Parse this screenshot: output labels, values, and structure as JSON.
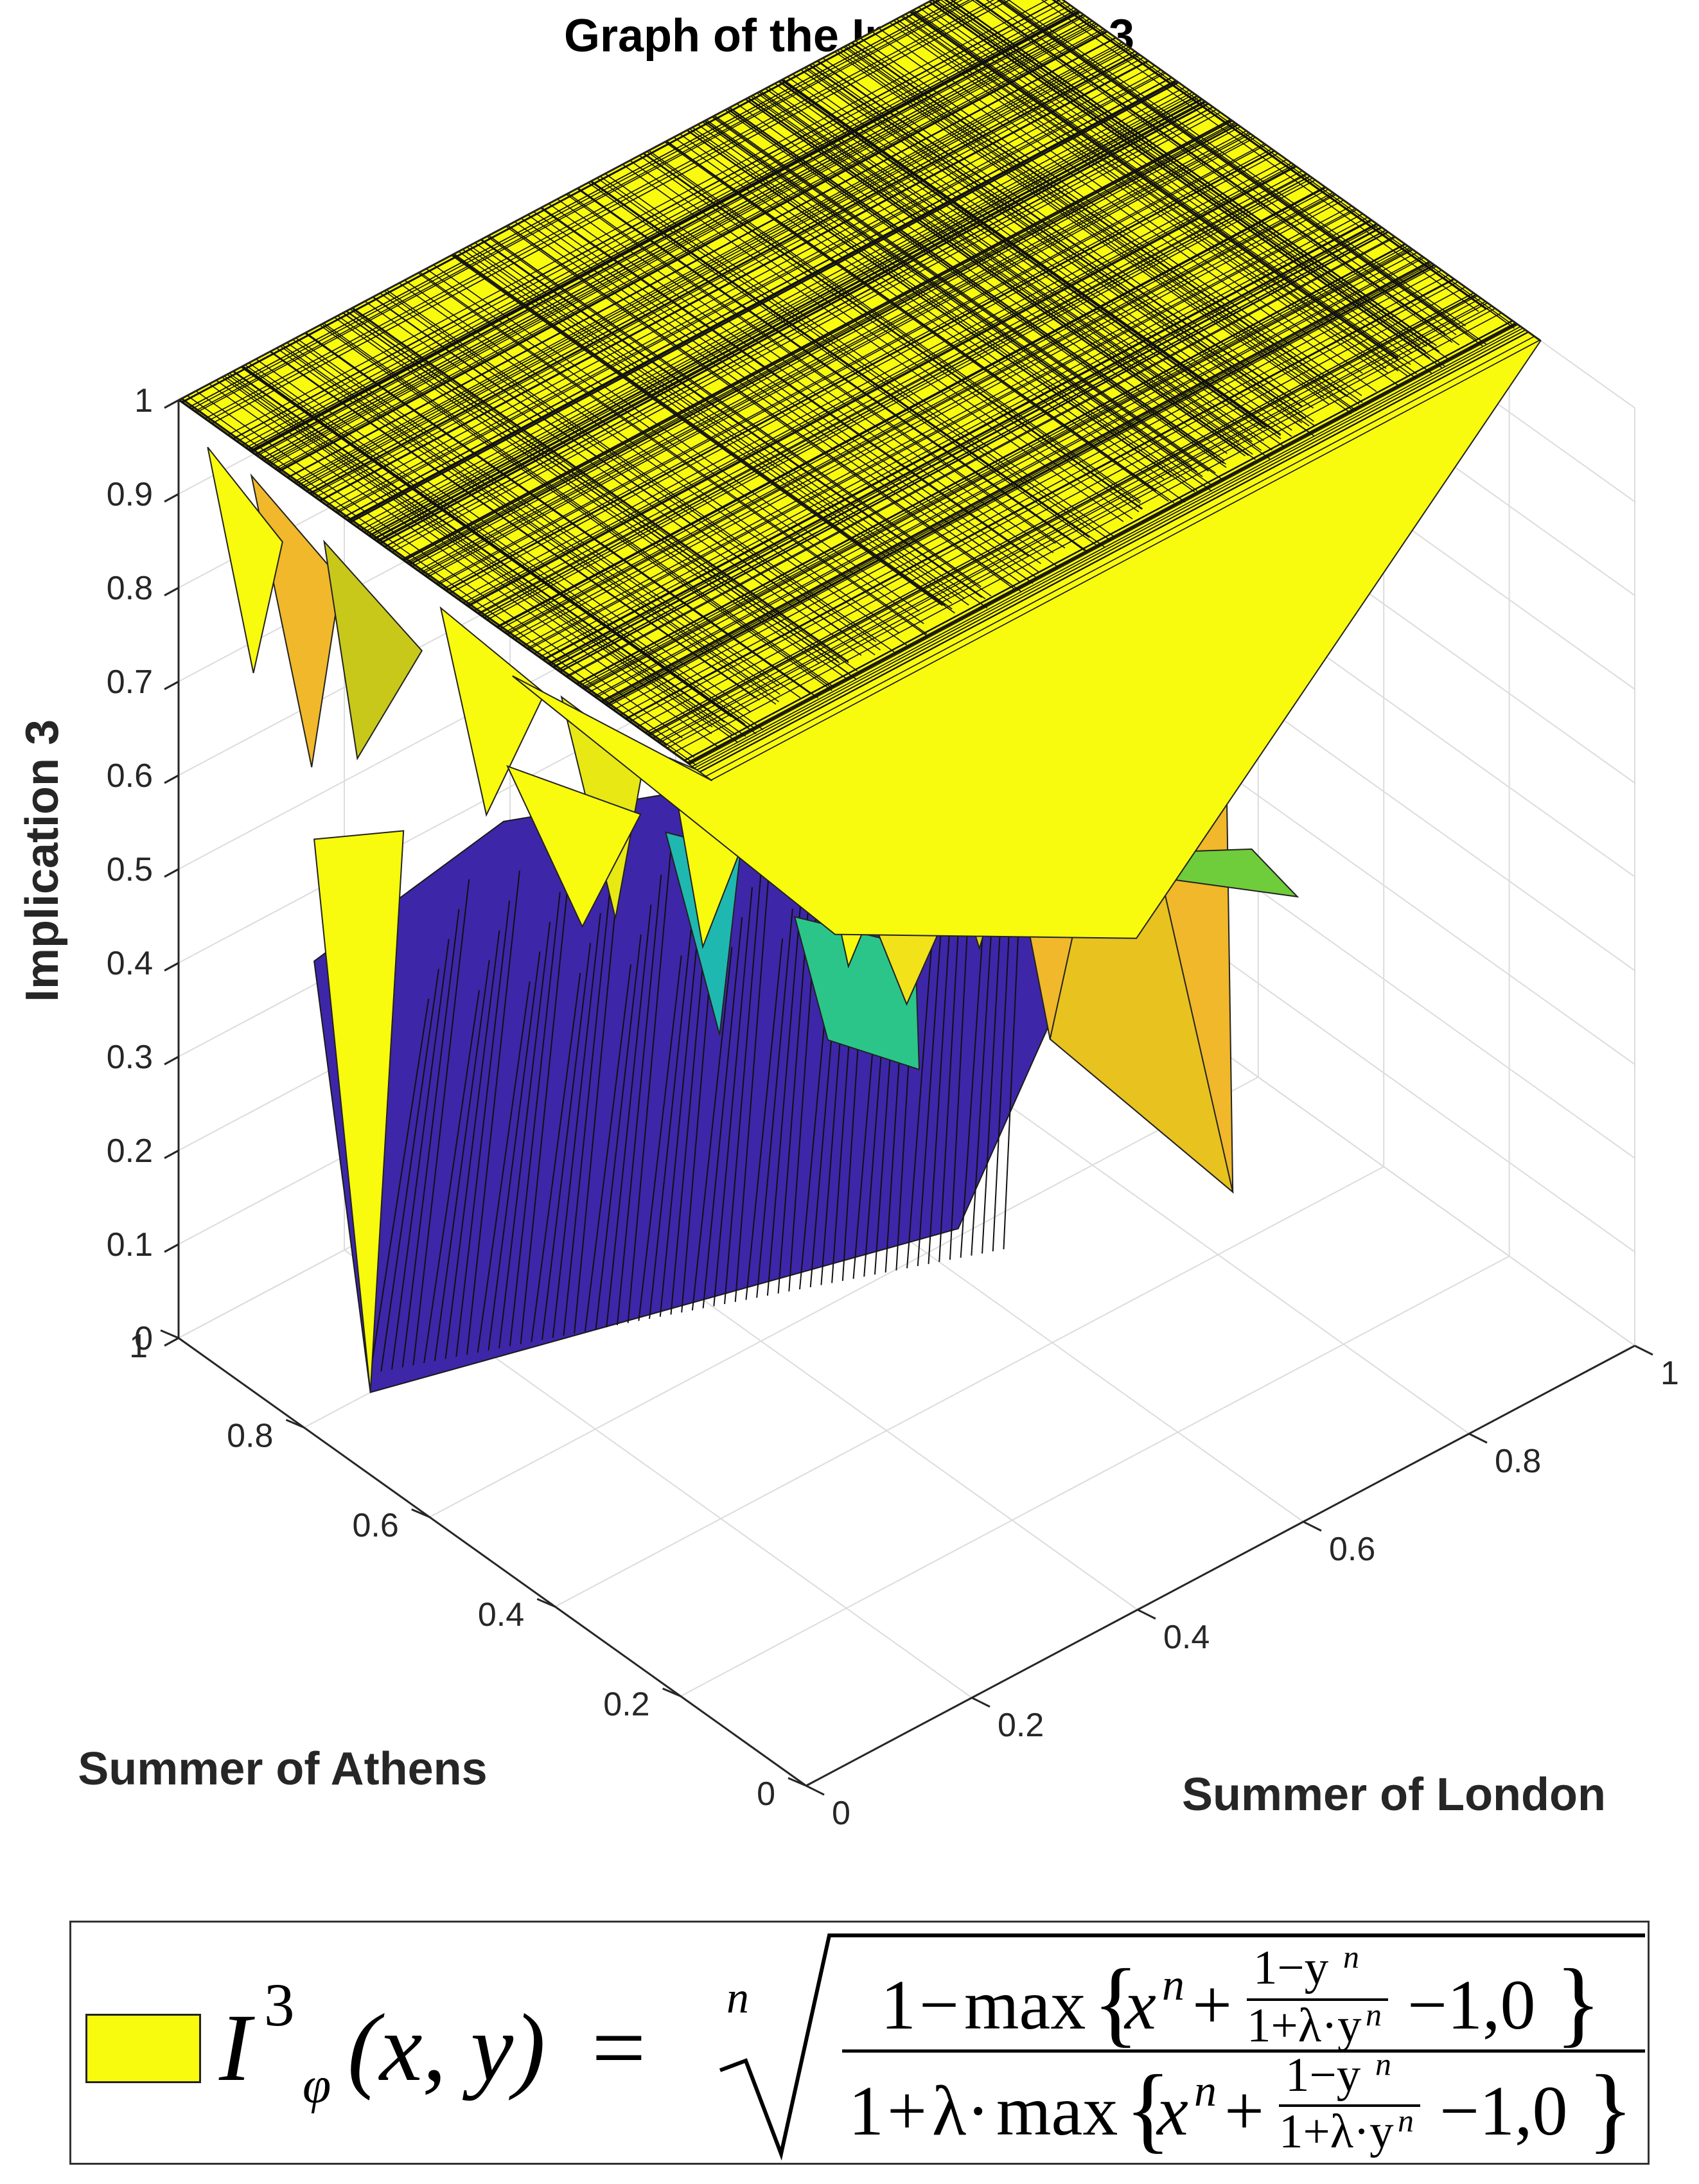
{
  "chart_data": {
    "type": "surface",
    "title": "Graph of the Implication 3",
    "xlabel": "Summer of London",
    "ylabel": "Summer of Athens",
    "zlabel": "Implication 3",
    "xlim": [
      0,
      1
    ],
    "ylim": [
      0,
      1
    ],
    "zlim": [
      0,
      1
    ],
    "x_ticks": [
      "0",
      "0.2",
      "0.4",
      "0.6",
      "0.8",
      "1"
    ],
    "y_ticks": [
      "0",
      "0.2",
      "0.4",
      "0.6",
      "0.8",
      "1"
    ],
    "z_ticks": [
      "0",
      "0.1",
      "0.2",
      "0.3",
      "0.4",
      "0.5",
      "0.6",
      "0.7",
      "0.8",
      "0.9",
      "1"
    ],
    "grid": true,
    "colormap": "parula",
    "colors": {
      "surface_top": "#f9fb0e",
      "low": "#3e26a8",
      "mid": "#2bc58a",
      "orange": "#f0b82a"
    },
    "surface_summary": [
      {
        "region": "plateau",
        "x": [
          0,
          1
        ],
        "y": [
          0,
          1
        ],
        "z": 1
      },
      {
        "region": "lower drop",
        "x": [
          0.25,
          0.6
        ],
        "y": [
          0.4,
          0.9
        ],
        "z_min": 0
      }
    ]
  },
  "legend": {
    "swatch_color": "#f9fb0e",
    "formula_text": "I^3_φ(x, y) = ⁿ√( (1−max{xⁿ+ (1−yⁿ)/(1+λ·yⁿ) −1,0}) / (1+λ·max{xⁿ+ (1−yⁿ)/(1+λ·yⁿ) −1,0}) )",
    "lhs_symbol": "I",
    "lhs_sup": "3",
    "lhs_sub": "φ",
    "lhs_args": "(x, y)",
    "equals": "=",
    "root_index": "n",
    "num_one": "1",
    "den_one": "1",
    "lambda_dot": "λ·",
    "max_word": "max",
    "inner_x": "x",
    "inner_n": "n",
    "frac_num": "1−y",
    "frac_den": "1+λ·y",
    "tail": "−1,0"
  }
}
